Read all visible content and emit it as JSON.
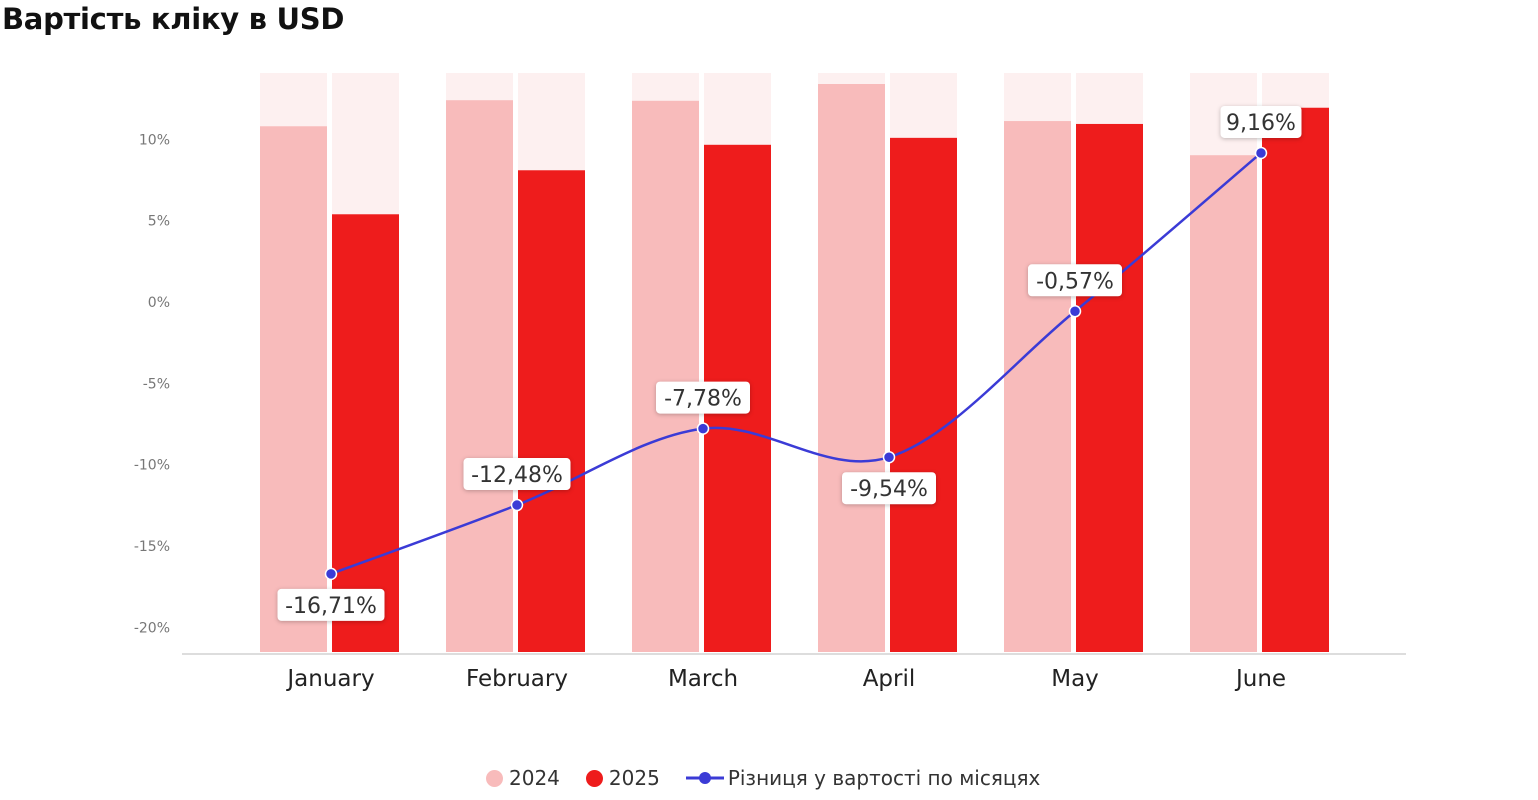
{
  "title": "Вартість кліку в USD",
  "chart_data": {
    "type": "bar+line",
    "title": "Вартість кліку в USD",
    "categories": [
      "January",
      "February",
      "March",
      "April",
      "May",
      "June"
    ],
    "series": [
      {
        "name": "2024",
        "type": "bar",
        "color": "#f8bbbb",
        "relative_values": [
          0.908,
          0.953,
          0.952,
          0.981,
          0.917,
          0.858
        ]
      },
      {
        "name": "2025",
        "type": "bar",
        "color": "#ee1c1c",
        "relative_values": [
          0.756,
          0.832,
          0.876,
          0.888,
          0.912,
          0.94
        ]
      },
      {
        "name": "Різниця у вартості по місяцях",
        "type": "line",
        "color": "#3b3bd6",
        "values": [
          -16.71,
          -12.48,
          -7.78,
          -9.54,
          -0.57,
          9.16
        ],
        "labels": [
          "-16,71%",
          "-12,48%",
          "-7,78%",
          "-9,54%",
          "-0,57%",
          "9,16%"
        ]
      }
    ],
    "y_ticks": [
      "10%",
      "5%",
      "0%",
      "-5%",
      "-10%",
      "-15%",
      "-20%"
    ],
    "y_tick_values": [
      10,
      5,
      0,
      -5,
      -10,
      -15,
      -20
    ],
    "ylim": [
      -20,
      10
    ],
    "grid": false,
    "legend_position": "bottom-center",
    "legend": [
      "2024",
      "2025",
      "Різниця у вартості по місяцях"
    ]
  }
}
